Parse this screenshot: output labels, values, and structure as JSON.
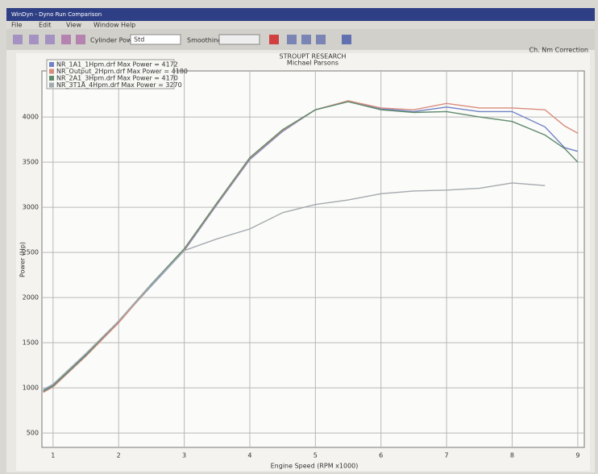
{
  "window": {
    "title": "WinDyn - Dyno Run Comparison",
    "menu": [
      "File",
      "Edit",
      "View",
      "Window",
      "Help"
    ],
    "toolbar": {
      "field_label": "Cylinder Power",
      "field_value": "Std",
      "smoothing_label": "Smoothing",
      "status": "Ch. Nm  Correction"
    }
  },
  "chart_data": {
    "type": "line",
    "title": "STROUPT RESEARCH",
    "subtitle": "Michael Parsons",
    "x_label": "Engine Speed (RPM x1000)",
    "y_label": "Power (Hp)",
    "x": [
      0.85,
      1,
      1.5,
      2,
      2.5,
      3,
      3.5,
      4,
      4.5,
      5,
      5.5,
      6,
      6.5,
      7,
      7.5,
      8,
      8.5,
      8.8,
      9
    ],
    "series": [
      {
        "name": "NR_1A1_1Hpm.drf Max Power = 4172",
        "color": "#6f82c4",
        "values": [
          970,
          1030,
          1370,
          1730,
          2130,
          2520,
          3030,
          3530,
          3840,
          4080,
          4170,
          4090,
          4060,
          4110,
          4060,
          4060,
          3890,
          3660,
          3620
        ]
      },
      {
        "name": "NR_Output_2Hpm.drf Max Power = 4180",
        "color": "#d98c7e",
        "values": [
          950,
          1010,
          1350,
          1720,
          2140,
          2530,
          3040,
          3540,
          3850,
          4080,
          4180,
          4100,
          4080,
          4150,
          4100,
          4100,
          4080,
          3900,
          3820
        ]
      },
      {
        "name": "NR_2A1_3Hpm.drf Max Power = 4170",
        "color": "#5f8a6c",
        "values": [
          960,
          1020,
          1360,
          1740,
          2150,
          2540,
          3050,
          3550,
          3860,
          4080,
          4170,
          4080,
          4050,
          4060,
          4000,
          3950,
          3800,
          3650,
          3500
        ]
      },
      {
        "name": "NR_3T1A_4Hpm.drf Max Power = 3270",
        "color": "#a3a9ae",
        "values": [
          980,
          1040,
          1380,
          1740,
          2140,
          2520,
          2650,
          2760,
          2940,
          3030,
          3080,
          3150,
          3180,
          3190,
          3210,
          3270,
          3240,
          null,
          null
        ]
      }
    ],
    "xlim": [
      0.83,
      9.1
    ],
    "ylim": [
      340,
      4510
    ],
    "xticks": [
      1,
      2,
      3,
      4,
      5,
      6,
      7,
      8,
      9
    ],
    "yticks": [
      500,
      1000,
      1500,
      2000,
      2500,
      3000,
      3500,
      4000
    ],
    "grid": true
  }
}
